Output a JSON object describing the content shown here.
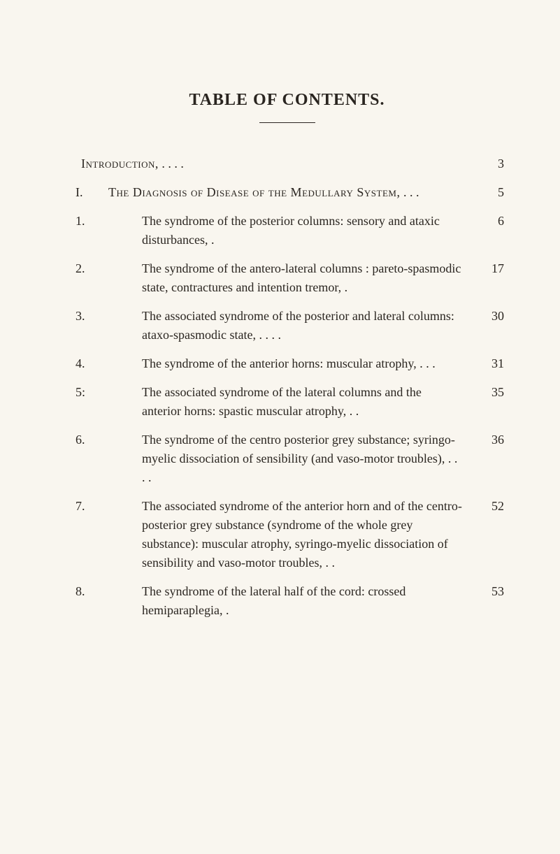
{
  "title": "TABLE OF CONTENTS.",
  "entries": [
    {
      "number": "",
      "text_smallcaps": "Introduction,",
      "text_rest": "     .     .     .     .",
      "page": "3",
      "type": "intro"
    },
    {
      "number": "I.",
      "text_smallcaps": "The Diagnosis of Disease of the Medullary System,",
      "text_rest": "     .     .     .",
      "page": "5",
      "type": "section"
    },
    {
      "number": "1.",
      "text": "The syndrome of the posterior columns: sensory and ataxic disturbances,   .",
      "page": "6",
      "type": "sub"
    },
    {
      "number": "2.",
      "text": "The syndrome of the antero-lateral columns : pareto-spasmodic state, contractures and intention tremor,   .",
      "page": "17",
      "type": "sub"
    },
    {
      "number": "3.",
      "text": "The associated syndrome of the posterior and lateral columns: ataxo-spasmodic state,   .     .     .     .",
      "page": "30",
      "type": "sub"
    },
    {
      "number": "4.",
      "text": "The syndrome of the anterior horns: muscular atrophy,   .     .     .",
      "page": "31",
      "type": "sub"
    },
    {
      "number": "5:",
      "text": "The associated syndrome of the lateral columns and the anterior horns: spastic muscular atrophy,     .     .",
      "page": "35",
      "type": "sub"
    },
    {
      "number": "6.",
      "text": "The syndrome of the centro posterior grey substance; syringo-myelic dissociation of sensibility (and vaso-motor troubles),     .     .     .     .",
      "page": "36",
      "type": "sub"
    },
    {
      "number": "7.",
      "text": "The associated syndrome of the anterior horn and of the centro-posterior grey substance (syndrome of the whole grey substance): muscular atrophy, syringo-myelic dissociation of sensibility and vaso-motor troubles,     .     .",
      "page": "52",
      "type": "sub"
    },
    {
      "number": "8.",
      "text": "The syndrome of the lateral half of the cord: crossed hemiparaplegia,     .",
      "page": "53",
      "type": "sub"
    }
  ]
}
